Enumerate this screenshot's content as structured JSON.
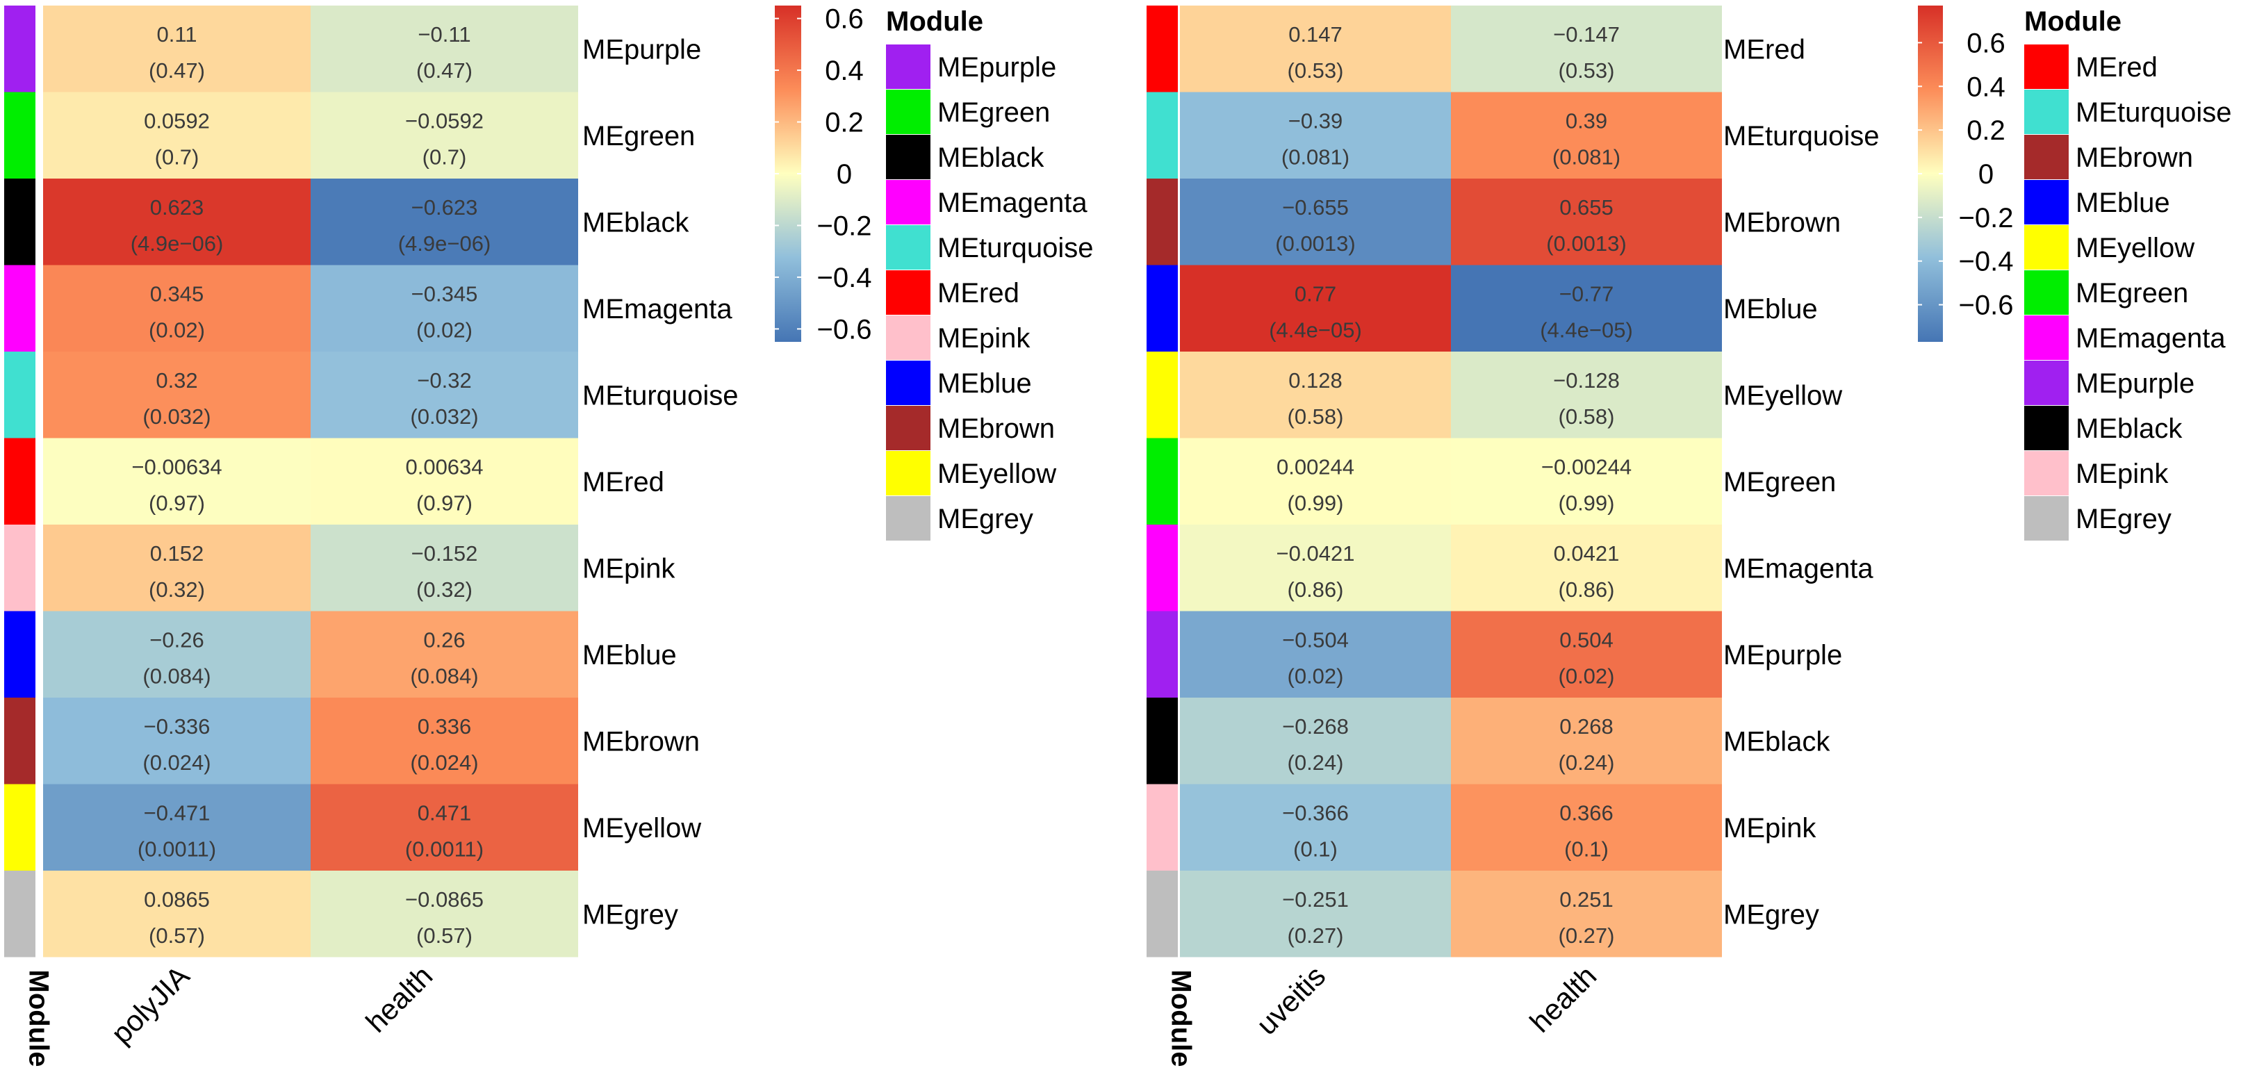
{
  "chart_data": [
    {
      "type": "heatmap",
      "title": "",
      "annotation_label": "Module",
      "columns": [
        "polyJIA",
        "health"
      ],
      "rows": [
        {
          "module": "MEpurple",
          "color": "#A020F0",
          "values": [
            0.11,
            -0.11
          ],
          "labels": [
            "0.11",
            "−0.11"
          ],
          "pvalues": [
            "(0.47)",
            "(0.47)"
          ]
        },
        {
          "module": "MEgreen",
          "color": "#00EE00",
          "values": [
            0.0592,
            -0.0592
          ],
          "labels": [
            "0.0592",
            "−0.0592"
          ],
          "pvalues": [
            "(0.7)",
            "(0.7)"
          ]
        },
        {
          "module": "MEblack",
          "color": "#000000",
          "values": [
            0.623,
            -0.623
          ],
          "labels": [
            "0.623",
            "−0.623"
          ],
          "pvalues": [
            "(4.9e−06)",
            "(4.9e−06)"
          ]
        },
        {
          "module": "MEmagenta",
          "color": "#FF00FF",
          "values": [
            0.345,
            -0.345
          ],
          "labels": [
            "0.345",
            "−0.345"
          ],
          "pvalues": [
            "(0.02)",
            "(0.02)"
          ]
        },
        {
          "module": "MEturquoise",
          "color": "#40E0D0",
          "values": [
            0.32,
            -0.32
          ],
          "labels": [
            "0.32",
            "−0.32"
          ],
          "pvalues": [
            "(0.032)",
            "(0.032)"
          ]
        },
        {
          "module": "MEred",
          "color": "#FF0000",
          "values": [
            -0.00634,
            0.00634
          ],
          "labels": [
            "−0.00634",
            "0.00634"
          ],
          "pvalues": [
            "(0.97)",
            "(0.97)"
          ]
        },
        {
          "module": "MEpink",
          "color": "#FFC0CB",
          "values": [
            0.152,
            -0.152
          ],
          "labels": [
            "0.152",
            "−0.152"
          ],
          "pvalues": [
            "(0.32)",
            "(0.32)"
          ]
        },
        {
          "module": "MEblue",
          "color": "#0000FF",
          "values": [
            -0.26,
            0.26
          ],
          "labels": [
            "−0.26",
            "0.26"
          ],
          "pvalues": [
            "(0.084)",
            "(0.084)"
          ]
        },
        {
          "module": "MEbrown",
          "color": "#A52A2A",
          "values": [
            -0.336,
            0.336
          ],
          "labels": [
            "−0.336",
            "0.336"
          ],
          "pvalues": [
            "(0.024)",
            "(0.024)"
          ]
        },
        {
          "module": "MEyellow",
          "color": "#FFFF00",
          "values": [
            -0.471,
            0.471
          ],
          "labels": [
            "−0.471",
            "0.471"
          ],
          "pvalues": [
            "(0.0011)",
            "(0.0011)"
          ]
        },
        {
          "module": "MEgrey",
          "color": "#BEBEBE",
          "values": [
            0.0865,
            -0.0865
          ],
          "labels": [
            "0.0865",
            "−0.0865"
          ],
          "pvalues": [
            "(0.57)",
            "(0.57)"
          ]
        }
      ],
      "colorbar": {
        "range": [
          -0.65,
          0.65
        ],
        "ticks": [
          0.6,
          0.4,
          0.2,
          0,
          -0.2,
          -0.4,
          -0.6
        ],
        "tick_labels": [
          "0.6",
          "0.4",
          "0.2",
          "0",
          "−0.2",
          "−0.4",
          "−0.6"
        ]
      },
      "legend": {
        "title": "Module",
        "items": [
          {
            "label": "MEpurple",
            "color": "#A020F0"
          },
          {
            "label": "MEgreen",
            "color": "#00EE00"
          },
          {
            "label": "MEblack",
            "color": "#000000"
          },
          {
            "label": "MEmagenta",
            "color": "#FF00FF"
          },
          {
            "label": "MEturquoise",
            "color": "#40E0D0"
          },
          {
            "label": "MEred",
            "color": "#FF0000"
          },
          {
            "label": "MEpink",
            "color": "#FFC0CB"
          },
          {
            "label": "MEblue",
            "color": "#0000FF"
          },
          {
            "label": "MEbrown",
            "color": "#A52A2A"
          },
          {
            "label": "MEyellow",
            "color": "#FFFF00"
          },
          {
            "label": "MEgrey",
            "color": "#BEBEBE"
          }
        ]
      }
    },
    {
      "type": "heatmap",
      "title": "",
      "annotation_label": "Module",
      "columns": [
        "uveitis",
        "health"
      ],
      "rows": [
        {
          "module": "MEred",
          "color": "#FF0000",
          "values": [
            0.147,
            -0.147
          ],
          "labels": [
            "0.147",
            "−0.147"
          ],
          "pvalues": [
            "(0.53)",
            "(0.53)"
          ]
        },
        {
          "module": "MEturquoise",
          "color": "#40E0D0",
          "values": [
            -0.39,
            0.39
          ],
          "labels": [
            "−0.39",
            "0.39"
          ],
          "pvalues": [
            "(0.081)",
            "(0.081)"
          ]
        },
        {
          "module": "MEbrown",
          "color": "#A52A2A",
          "values": [
            -0.655,
            0.655
          ],
          "labels": [
            "−0.655",
            "0.655"
          ],
          "pvalues": [
            "(0.0013)",
            "(0.0013)"
          ]
        },
        {
          "module": "MEblue",
          "color": "#0000FF",
          "values": [
            0.77,
            -0.77
          ],
          "labels": [
            "0.77",
            "−0.77"
          ],
          "pvalues": [
            "(4.4e−05)",
            "(4.4e−05)"
          ]
        },
        {
          "module": "MEyellow",
          "color": "#FFFF00",
          "values": [
            0.128,
            -0.128
          ],
          "labels": [
            "0.128",
            "−0.128"
          ],
          "pvalues": [
            "(0.58)",
            "(0.58)"
          ]
        },
        {
          "module": "MEgreen",
          "color": "#00EE00",
          "values": [
            0.00244,
            -0.00244
          ],
          "labels": [
            "0.00244",
            "−0.00244"
          ],
          "pvalues": [
            "(0.99)",
            "(0.99)"
          ]
        },
        {
          "module": "MEmagenta",
          "color": "#FF00FF",
          "values": [
            -0.0421,
            0.0421
          ],
          "labels": [
            "−0.0421",
            "0.0421"
          ],
          "pvalues": [
            "(0.86)",
            "(0.86)"
          ]
        },
        {
          "module": "MEpurple",
          "color": "#A020F0",
          "values": [
            -0.504,
            0.504
          ],
          "labels": [
            "−0.504",
            "0.504"
          ],
          "pvalues": [
            "(0.02)",
            "(0.02)"
          ]
        },
        {
          "module": "MEblack",
          "color": "#000000",
          "values": [
            -0.268,
            0.268
          ],
          "labels": [
            "−0.268",
            "0.268"
          ],
          "pvalues": [
            "(0.24)",
            "(0.24)"
          ]
        },
        {
          "module": "MEpink",
          "color": "#FFC0CB",
          "values": [
            -0.366,
            0.366
          ],
          "labels": [
            "−0.366",
            "0.366"
          ],
          "pvalues": [
            "(0.1)",
            "(0.1)"
          ]
        },
        {
          "module": "MEgrey",
          "color": "#BEBEBE",
          "values": [
            -0.251,
            0.251
          ],
          "labels": [
            "−0.251",
            "0.251"
          ],
          "pvalues": [
            "(0.27)",
            "(0.27)"
          ]
        }
      ],
      "colorbar": {
        "range": [
          -0.77,
          0.77
        ],
        "ticks": [
          0.6,
          0.4,
          0.2,
          0,
          -0.2,
          -0.4,
          -0.6
        ],
        "tick_labels": [
          "0.6",
          "0.4",
          "0.2",
          "0",
          "−0.2",
          "−0.4",
          "−0.6"
        ]
      },
      "legend": {
        "title": "Module",
        "items": [
          {
            "label": "MEred",
            "color": "#FF0000"
          },
          {
            "label": "MEturquoise",
            "color": "#40E0D0"
          },
          {
            "label": "MEbrown",
            "color": "#A52A2A"
          },
          {
            "label": "MEblue",
            "color": "#0000FF"
          },
          {
            "label": "MEyellow",
            "color": "#FFFF00"
          },
          {
            "label": "MEgreen",
            "color": "#00EE00"
          },
          {
            "label": "MEmagenta",
            "color": "#FF00FF"
          },
          {
            "label": "MEpurple",
            "color": "#A020F0"
          },
          {
            "label": "MEblack",
            "color": "#000000"
          },
          {
            "label": "MEpink",
            "color": "#FFC0CB"
          },
          {
            "label": "MEgrey",
            "color": "#BEBEBE"
          }
        ]
      }
    }
  ]
}
